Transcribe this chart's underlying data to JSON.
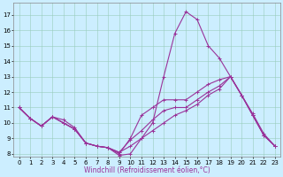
{
  "xlabel": "Windchill (Refroidissement éolien,°C)",
  "bg_color": "#cceeff",
  "line_color": "#993399",
  "grid_color": "#99ccbb",
  "xlim": [
    -0.5,
    23.5
  ],
  "ylim": [
    7.8,
    17.8
  ],
  "xticks": [
    0,
    1,
    2,
    3,
    4,
    5,
    6,
    7,
    8,
    9,
    10,
    11,
    12,
    13,
    14,
    15,
    16,
    17,
    18,
    19,
    20,
    21,
    22,
    23
  ],
  "yticks": [
    8,
    9,
    10,
    11,
    12,
    13,
    14,
    15,
    16,
    17
  ],
  "lines": [
    {
      "x": [
        0,
        1,
        2,
        3,
        4,
        5,
        6,
        7,
        8,
        9,
        10,
        11,
        12,
        13,
        14,
        15,
        16,
        17,
        18,
        19,
        20,
        21,
        22,
        23
      ],
      "y": [
        11.0,
        10.3,
        9.8,
        10.4,
        10.2,
        9.7,
        8.7,
        8.5,
        8.4,
        7.9,
        8.0,
        9.0,
        10.0,
        13.0,
        15.8,
        17.2,
        16.7,
        15.0,
        14.2,
        13.0,
        11.8,
        10.6,
        9.3,
        8.5
      ]
    },
    {
      "x": [
        0,
        1,
        2,
        3,
        4,
        5,
        6,
        7,
        8,
        9,
        10,
        11,
        12,
        13,
        14,
        15,
        16,
        17,
        18,
        19,
        20,
        21,
        22,
        23
      ],
      "y": [
        11.0,
        10.3,
        9.8,
        10.4,
        10.0,
        9.6,
        8.7,
        8.5,
        8.4,
        8.0,
        9.0,
        10.5,
        11.0,
        11.5,
        11.5,
        11.5,
        12.0,
        12.5,
        12.8,
        13.0,
        11.8,
        10.5,
        9.2,
        8.5
      ]
    },
    {
      "x": [
        0,
        1,
        2,
        3,
        4,
        5,
        6,
        7,
        8,
        9,
        10,
        11,
        12,
        13,
        14,
        15,
        16,
        17,
        18,
        19,
        20,
        21,
        22,
        23
      ],
      "y": [
        11.0,
        10.3,
        9.8,
        10.4,
        10.0,
        9.6,
        8.7,
        8.5,
        8.4,
        8.1,
        8.9,
        9.5,
        10.2,
        10.8,
        11.0,
        11.0,
        11.5,
        12.0,
        12.4,
        13.0,
        11.8,
        10.5,
        9.2,
        8.5
      ]
    },
    {
      "x": [
        0,
        1,
        2,
        3,
        4,
        5,
        6,
        7,
        8,
        9,
        10,
        11,
        12,
        13,
        14,
        15,
        16,
        17,
        18,
        19,
        20,
        21,
        22,
        23
      ],
      "y": [
        11.0,
        10.3,
        9.8,
        10.4,
        10.0,
        9.6,
        8.7,
        8.5,
        8.4,
        8.1,
        8.5,
        9.0,
        9.5,
        10.0,
        10.5,
        10.8,
        11.2,
        11.8,
        12.2,
        13.0,
        11.8,
        10.5,
        9.2,
        8.5
      ]
    }
  ],
  "marker": "+",
  "markersize": 3,
  "linewidth": 0.8,
  "tick_fontsize": 5.0,
  "xlabel_fontsize": 5.5
}
